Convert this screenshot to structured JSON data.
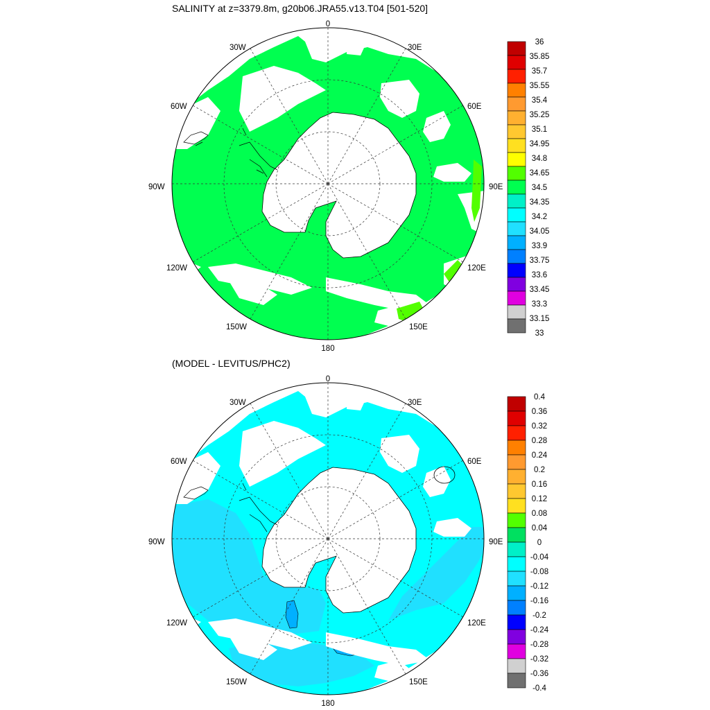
{
  "panels": [
    {
      "title": "SALINITY at z=3379.8m, g20b06.JRA55.v13.T04 [501-520]",
      "colorbar": {
        "levels": [
          "36",
          "35.85",
          "35.7",
          "35.55",
          "35.4",
          "35.25",
          "35.1",
          "34.95",
          "34.8",
          "34.65",
          "34.5",
          "34.35",
          "34.2",
          "34.05",
          "33.9",
          "33.75",
          "33.6",
          "33.45",
          "33.3",
          "33.15",
          "33"
        ],
        "colors": [
          "#c00000",
          "#e00000",
          "#ff2000",
          "#ff8000",
          "#ff9a30",
          "#ffb030",
          "#ffc830",
          "#ffe020",
          "#ffff00",
          "#52ff00",
          "#00ff50",
          "#00f0c8",
          "#00ffff",
          "#20e0ff",
          "#00b0ff",
          "#0080ff",
          "#0000ff",
          "#8000e0",
          "#e000e0",
          "#d0d0d0",
          "#707070"
        ]
      }
    },
    {
      "title": "(MODEL - LEVITUS/PHC2)",
      "colorbar": {
        "levels": [
          "0.4",
          "0.36",
          "0.32",
          "0.28",
          "0.24",
          "0.2",
          "0.16",
          "0.12",
          "0.08",
          "0.04",
          "0",
          "-0.04",
          "-0.08",
          "-0.12",
          "-0.16",
          "-0.2",
          "-0.24",
          "-0.28",
          "-0.32",
          "-0.36",
          "-0.4"
        ],
        "colors": [
          "#c00000",
          "#e00000",
          "#ff2000",
          "#ff8000",
          "#ff9a30",
          "#ffb030",
          "#ffc830",
          "#ffe020",
          "#52ff00",
          "#00e060",
          "#00f0c8",
          "#00ffff",
          "#20e0ff",
          "#00b0ff",
          "#0080ff",
          "#0000ff",
          "#8000e0",
          "#e000e0",
          "#d0d0d0",
          "#707070"
        ]
      }
    }
  ],
  "map_labels": {
    "lon_top": "0",
    "lon_30e": "30E",
    "lon_60e": "60E",
    "lon_90e": "90E",
    "lon_120e": "120E",
    "lon_150e": "150E",
    "lon_180": "180",
    "lon_150w": "150W",
    "lon_120w": "120W",
    "lon_90w": "90W",
    "lon_60w": "60W",
    "lon_30w": "30W"
  },
  "fill_colors": {
    "top_main": "#00ff50",
    "top_edge": "#52ff00",
    "bottom_main": "#00ffff",
    "bottom_mid": "#20e0ff",
    "bottom_deep": "#00b0ff"
  }
}
